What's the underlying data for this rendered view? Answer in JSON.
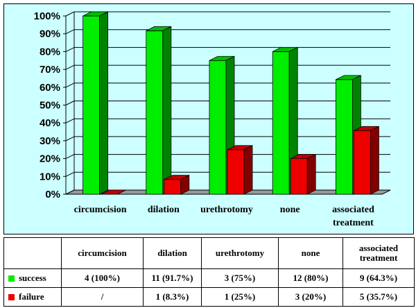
{
  "chart_data": {
    "type": "bar",
    "categories": [
      "circumcision",
      "dilation",
      "urethrotomy",
      "none",
      "associated treatment"
    ],
    "series": [
      {
        "name": "success",
        "values": [
          100,
          91.7,
          75,
          80,
          64.3
        ],
        "color": "#00ee00"
      },
      {
        "name": "failure",
        "values": [
          0,
          8.3,
          25,
          20,
          35.7
        ],
        "color": "#ee0000"
      }
    ],
    "ylim": [
      0,
      100
    ],
    "yticks": [
      "0%",
      "10%",
      "20%",
      "30%",
      "40%",
      "50%",
      "60%",
      "70%",
      "80%",
      "90%",
      "100%"
    ],
    "grid": true,
    "legend": "table"
  },
  "table": {
    "headers": [
      "circumcision",
      "dilation",
      "urethrotomy",
      "none",
      "associated treatment"
    ],
    "rows": [
      {
        "label": "success",
        "color": "#00ee00",
        "cells": [
          "4 (100%)",
          "11 (91.7%)",
          "3 (75%)",
          "12 (80%)",
          "9 (64.3%)"
        ]
      },
      {
        "label": "failure",
        "color": "#ee0000",
        "cells": [
          "/",
          "1 (8.3%)",
          "1 (25%)",
          "3 (20%)",
          "5 (35.7%)"
        ]
      }
    ]
  },
  "colors": {
    "plot_background": "#ccffff",
    "floor": "#999999"
  }
}
